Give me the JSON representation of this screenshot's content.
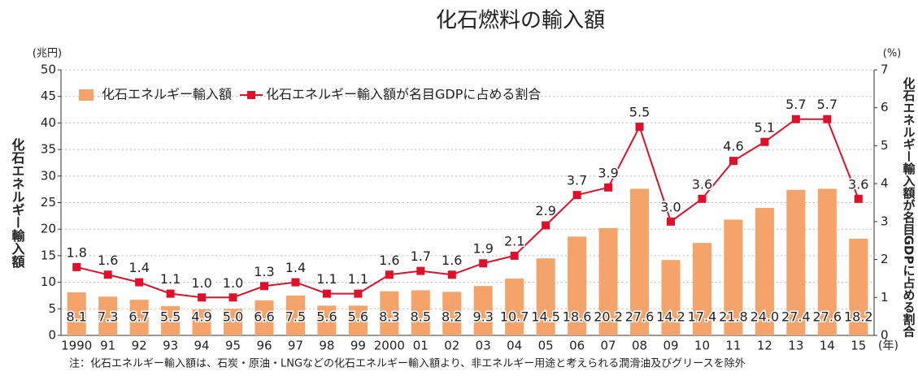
{
  "chart_data": {
    "type": "bar_line",
    "title": "化石燃料の輸入額",
    "y_unit": "(兆円)",
    "y2_unit": "(%)",
    "x_unit": "(年)",
    "ylabel": "化石エネルギー輸入額",
    "y2label": "化石エネルギー輸入額が名目GDPに占める割合",
    "note": "注：化石エネルギー輸入額は、石炭・原油・LNGなどの化石エネルギー輸入額より、非エネルギー用途と考えられる潤滑油及びグリースを除外",
    "categories": [
      "1990",
      "91",
      "92",
      "93",
      "94",
      "95",
      "96",
      "97",
      "98",
      "99",
      "2000",
      "01",
      "02",
      "03",
      "04",
      "05",
      "06",
      "07",
      "08",
      "09",
      "10",
      "11",
      "12",
      "13",
      "14",
      "15"
    ],
    "series": [
      {
        "name": "化石エネルギー輸入額",
        "type": "bar",
        "color": "#f4a46a",
        "values": [
          8.1,
          7.3,
          6.7,
          5.5,
          4.9,
          5.0,
          6.6,
          7.5,
          5.6,
          5.6,
          8.3,
          8.5,
          8.2,
          9.3,
          10.7,
          14.5,
          18.6,
          20.2,
          27.6,
          14.2,
          17.4,
          21.8,
          24.0,
          27.4,
          27.6,
          18.2
        ],
        "value_labels": [
          "8.1",
          "7.3",
          "6.7",
          "5.5",
          "4.9",
          "5.0",
          "6.6",
          "7.5",
          "5.6",
          "5.6",
          "8.3",
          "8.5",
          "8.2",
          "9.3",
          "10.7",
          "14.5",
          "18.6",
          "20.2",
          "27.6",
          "14.2",
          "17.4",
          "21.8",
          "24.0",
          "27.4",
          "27.6",
          "18.2"
        ]
      },
      {
        "name": "化石エネルギー輸入額が名目GDPに占める割合",
        "type": "line",
        "axis": "y2",
        "color": "#e0102a",
        "values": [
          1.8,
          1.6,
          1.4,
          1.1,
          1.0,
          1.0,
          1.3,
          1.4,
          1.1,
          1.1,
          1.6,
          1.7,
          1.6,
          1.9,
          2.1,
          2.9,
          3.7,
          3.9,
          5.5,
          3.0,
          3.6,
          4.6,
          5.1,
          5.7,
          5.7,
          3.6
        ],
        "value_labels": [
          "1.8",
          "1.6",
          "1.4",
          "1.1",
          "1.0",
          "1.0",
          "1.3",
          "1.4",
          "1.1",
          "1.1",
          "1.6",
          "1.7",
          "1.6",
          "1.9",
          "2.1",
          "2.9",
          "3.7",
          "3.9",
          "5.5",
          "3.0",
          "3.6",
          "4.6",
          "5.1",
          "5.7",
          "5.7",
          "3.6"
        ]
      }
    ],
    "ylim": [
      0,
      50
    ],
    "yticks": [
      0,
      5,
      10,
      15,
      20,
      25,
      30,
      35,
      40,
      45,
      50
    ],
    "y2lim": [
      0,
      7
    ],
    "y2ticks": [
      0,
      1,
      2,
      3,
      4,
      5,
      6,
      7
    ],
    "grid": true,
    "legend": "top-left"
  }
}
